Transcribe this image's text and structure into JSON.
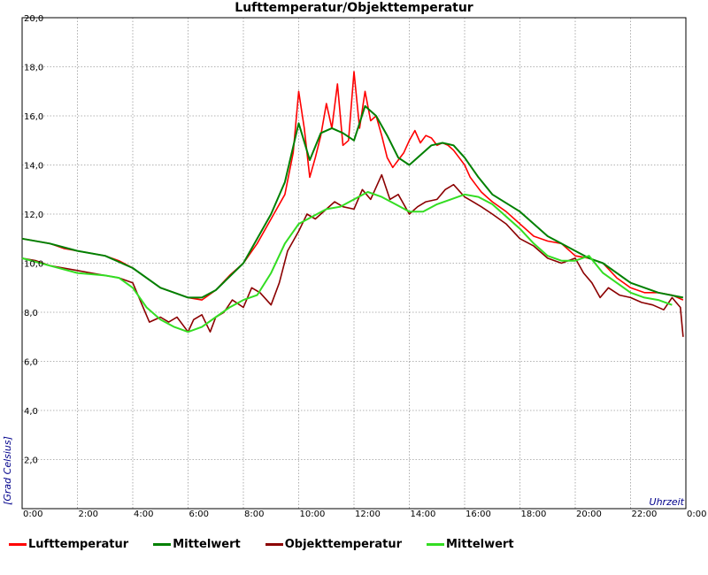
{
  "chart_data": {
    "type": "line",
    "title": "Lufttemperatur/Objekttemperatur",
    "ylabel": "[Grad Celsius]",
    "xlabel": "Uhrzeit",
    "xlim": [
      0,
      24
    ],
    "ylim": [
      0,
      20
    ],
    "xticks": [
      0,
      2,
      4,
      6,
      8,
      10,
      12,
      14,
      16,
      18,
      20,
      22,
      24
    ],
    "xtick_labels": [
      "0:00",
      "2:00",
      "4:00",
      "6:00",
      "8:00",
      "10:00",
      "12:00",
      "14:00",
      "16:00",
      "18:00",
      "20:00",
      "22:00",
      "0:00"
    ],
    "yticks": [
      2,
      4,
      6,
      8,
      10,
      12,
      14,
      16,
      18,
      20
    ],
    "ytick_labels": [
      "2,0",
      "4,0",
      "6,0",
      "8,0",
      "10,0",
      "12,0",
      "14,0",
      "16,0",
      "18,0",
      "20,0"
    ],
    "grid": true,
    "legend_position": "bottom",
    "series": [
      {
        "name": "Lufttemperatur",
        "color": "#ff0000",
        "x": [
          0,
          0.5,
          1,
          1.5,
          2,
          2.5,
          3,
          3.5,
          4,
          4.5,
          5,
          5.5,
          6,
          6.5,
          7,
          7.5,
          8,
          8.5,
          9,
          9.5,
          9.8,
          10,
          10.2,
          10.4,
          10.6,
          10.8,
          11,
          11.2,
          11.4,
          11.6,
          11.8,
          12,
          12.2,
          12.4,
          12.6,
          12.8,
          13,
          13.2,
          13.4,
          13.6,
          13.8,
          14,
          14.2,
          14.4,
          14.6,
          14.8,
          15,
          15.2,
          15.4,
          15.6,
          15.8,
          16,
          16.2,
          16.4,
          16.6,
          16.8,
          17,
          17.5,
          18,
          18.5,
          19,
          19.5,
          20,
          20.5,
          21,
          21.5,
          22,
          22.5,
          23,
          23.5,
          23.9
        ],
        "y": [
          11.0,
          10.9,
          10.8,
          10.6,
          10.5,
          10.4,
          10.3,
          10.1,
          9.8,
          9.4,
          9.0,
          8.8,
          8.6,
          8.5,
          8.9,
          9.5,
          10.0,
          10.8,
          11.8,
          12.8,
          14.5,
          17.0,
          15.5,
          13.5,
          14.3,
          15.2,
          16.5,
          15.5,
          17.3,
          14.8,
          15.0,
          17.8,
          15.5,
          17.0,
          15.8,
          16.0,
          15.2,
          14.3,
          13.9,
          14.2,
          14.5,
          15.0,
          15.4,
          14.9,
          15.2,
          15.1,
          14.8,
          14.9,
          14.8,
          14.6,
          14.3,
          14.0,
          13.5,
          13.2,
          12.9,
          12.7,
          12.5,
          12.1,
          11.6,
          11.1,
          10.9,
          10.8,
          10.3,
          10.2,
          10.0,
          9.4,
          9.0,
          8.8,
          8.8,
          8.7,
          8.5
        ]
      },
      {
        "name": "Mittelwert",
        "color": "#008000",
        "x": [
          0,
          1,
          2,
          3,
          4,
          5,
          6,
          6.5,
          7,
          8,
          9,
          9.5,
          10,
          10.4,
          10.8,
          11.2,
          11.6,
          12,
          12.4,
          12.8,
          13.2,
          13.6,
          14,
          14.4,
          14.8,
          15.2,
          15.6,
          16,
          16.5,
          17,
          18,
          19,
          20,
          20.5,
          21,
          22,
          23,
          23.9
        ],
        "y": [
          11.0,
          10.8,
          10.5,
          10.3,
          9.8,
          9.0,
          8.6,
          8.6,
          8.9,
          10.0,
          12.0,
          13.3,
          15.7,
          14.2,
          15.3,
          15.5,
          15.3,
          15.0,
          16.4,
          16.0,
          15.2,
          14.3,
          14.0,
          14.4,
          14.8,
          14.9,
          14.8,
          14.3,
          13.5,
          12.8,
          12.1,
          11.1,
          10.5,
          10.2,
          10.0,
          9.2,
          8.8,
          8.6
        ]
      },
      {
        "name": "Objekttemperatur",
        "color": "#8b0000",
        "x": [
          0,
          0.5,
          1,
          1.5,
          2,
          2.5,
          3,
          3.5,
          4,
          4.3,
          4.6,
          5,
          5.3,
          5.6,
          6,
          6.2,
          6.5,
          6.8,
          7,
          7.3,
          7.6,
          8,
          8.3,
          8.6,
          9,
          9.3,
          9.6,
          10,
          10.3,
          10.6,
          11,
          11.3,
          11.6,
          12,
          12.3,
          12.6,
          13,
          13.3,
          13.6,
          14,
          14.3,
          14.6,
          15,
          15.3,
          15.6,
          16,
          16.3,
          16.6,
          17,
          17.5,
          18,
          18.5,
          19,
          19.5,
          20,
          20.3,
          20.6,
          20.9,
          21.2,
          21.6,
          22,
          22.4,
          22.8,
          23.2,
          23.5,
          23.8,
          23.9
        ],
        "y": [
          10.2,
          10.1,
          9.9,
          9.8,
          9.7,
          9.6,
          9.5,
          9.4,
          9.2,
          8.4,
          7.6,
          7.8,
          7.6,
          7.8,
          7.2,
          7.7,
          7.9,
          7.2,
          7.8,
          8.0,
          8.5,
          8.2,
          9.0,
          8.8,
          8.3,
          9.2,
          10.5,
          11.3,
          12.0,
          11.8,
          12.2,
          12.5,
          12.3,
          12.2,
          13.0,
          12.6,
          13.6,
          12.6,
          12.8,
          12.0,
          12.3,
          12.5,
          12.6,
          13.0,
          13.2,
          12.7,
          12.5,
          12.3,
          12.0,
          11.6,
          11.0,
          10.7,
          10.2,
          10.0,
          10.2,
          9.6,
          9.2,
          8.6,
          9.0,
          8.7,
          8.6,
          8.4,
          8.3,
          8.1,
          8.6,
          8.2,
          7.0
        ]
      },
      {
        "name": "Mittelwert",
        "color": "#33dd22",
        "x": [
          0,
          1,
          2,
          3,
          3.5,
          4,
          4.5,
          5,
          5.5,
          6,
          6.5,
          7,
          7.5,
          8,
          8.5,
          9,
          9.5,
          10,
          10.5,
          11,
          11.5,
          12,
          12.5,
          13,
          13.5,
          14,
          14.5,
          15,
          15.5,
          16,
          16.5,
          17,
          17.5,
          18,
          18.5,
          19,
          19.5,
          20,
          20.5,
          21,
          21.5,
          22,
          22.5,
          23,
          23.5
        ],
        "y": [
          10.2,
          9.9,
          9.6,
          9.5,
          9.4,
          9.0,
          8.2,
          7.7,
          7.4,
          7.2,
          7.4,
          7.8,
          8.2,
          8.5,
          8.7,
          9.6,
          10.8,
          11.6,
          11.9,
          12.2,
          12.3,
          12.6,
          12.9,
          12.7,
          12.4,
          12.1,
          12.1,
          12.4,
          12.6,
          12.8,
          12.7,
          12.4,
          11.9,
          11.4,
          10.8,
          10.3,
          10.1,
          10.1,
          10.3,
          9.6,
          9.2,
          8.8,
          8.6,
          8.5,
          8.3
        ]
      }
    ]
  }
}
